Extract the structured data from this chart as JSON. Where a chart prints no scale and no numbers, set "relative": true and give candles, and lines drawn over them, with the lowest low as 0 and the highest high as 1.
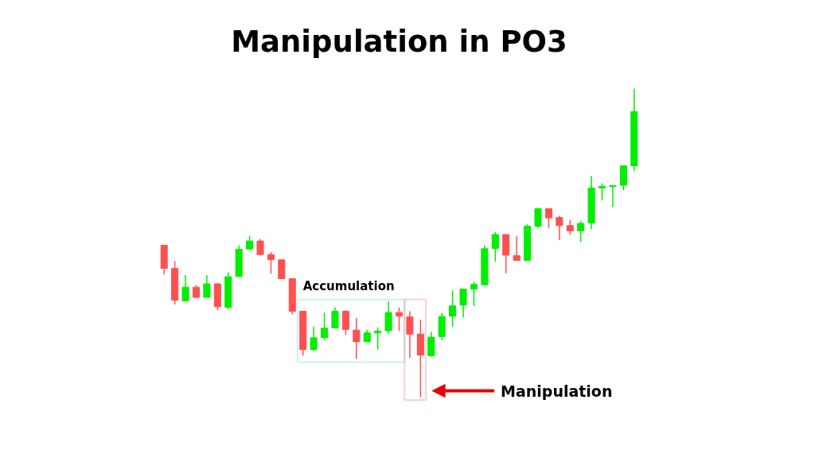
{
  "chart_data": {
    "type": "candlestick",
    "title": "Manipulation in PO3",
    "relative": true,
    "categories": [
      null,
      null,
      null,
      null,
      null,
      null,
      null,
      null,
      null,
      null,
      null,
      null,
      null,
      null,
      null,
      null,
      null,
      null,
      null,
      null,
      null,
      null,
      null,
      null,
      null,
      null,
      null,
      null,
      null,
      null,
      null,
      null,
      null,
      null,
      null,
      null,
      null,
      null,
      null,
      null,
      null,
      null,
      null,
      null,
      null
    ],
    "ohlc": [
      [
        0.492,
        0.492,
        0.398,
        0.417
      ],
      [
        0.417,
        0.441,
        0.3,
        0.314
      ],
      [
        0.312,
        0.395,
        0.309,
        0.356
      ],
      [
        0.356,
        0.363,
        0.32,
        0.323
      ],
      [
        0.323,
        0.395,
        0.323,
        0.367
      ],
      [
        0.367,
        0.37,
        0.282,
        0.293
      ],
      [
        0.291,
        0.404,
        0.284,
        0.39
      ],
      [
        0.391,
        0.492,
        0.391,
        0.479
      ],
      [
        0.48,
        0.522,
        0.477,
        0.506
      ],
      [
        0.506,
        0.513,
        0.46,
        0.462
      ],
      [
        0.462,
        0.47,
        0.4,
        0.446
      ],
      [
        0.445,
        0.445,
        0.383,
        0.384
      ],
      [
        0.384,
        0.384,
        0.267,
        0.278
      ],
      [
        0.278,
        0.28,
        0.134,
        0.154
      ],
      [
        0.154,
        0.228,
        0.149,
        0.192
      ],
      [
        0.193,
        0.273,
        0.184,
        0.223
      ],
      [
        0.224,
        0.291,
        0.224,
        0.278
      ],
      [
        0.278,
        0.281,
        0.201,
        0.219
      ],
      [
        0.217,
        0.256,
        0.123,
        0.179
      ],
      [
        0.179,
        0.218,
        0.179,
        0.208
      ],
      [
        0.208,
        0.226,
        0.154,
        0.213
      ],
      [
        0.215,
        0.311,
        0.205,
        0.274
      ],
      [
        0.274,
        0.29,
        0.214,
        0.262
      ],
      [
        0.26,
        0.278,
        0.127,
        0.204
      ],
      [
        0.204,
        0.251,
        0,
        0.136
      ],
      [
        0.134,
        0.211,
        0.131,
        0.194
      ],
      [
        0.196,
        0.273,
        0.185,
        0.261
      ],
      [
        0.262,
        0.346,
        0.228,
        0.296
      ],
      [
        0.298,
        0.351,
        0.258,
        0.35
      ],
      [
        0.35,
        0.374,
        0.295,
        0.365
      ],
      [
        0.364,
        0.492,
        0.361,
        0.481
      ],
      [
        0.482,
        0.535,
        0.439,
        0.527
      ],
      [
        0.527,
        0.527,
        0.401,
        0.46
      ],
      [
        0.459,
        0.521,
        0.443,
        0.443
      ],
      [
        0.443,
        0.56,
        0.443,
        0.554
      ],
      [
        0.554,
        0.613,
        0.549,
        0.611
      ],
      [
        0.611,
        0.611,
        0.548,
        0.581
      ],
      [
        0.582,
        0.588,
        0.509,
        0.556
      ],
      [
        0.556,
        0.574,
        0.526,
        0.539
      ],
      [
        0.539,
        0.571,
        0.503,
        0.563
      ],
      [
        0.564,
        0.717,
        0.545,
        0.678
      ],
      [
        0.678,
        0.693,
        0.637,
        0.683
      ],
      [
        0.683,
        0.687,
        0.616,
        0.686
      ],
      [
        0.687,
        0.75,
        0.671,
        0.75
      ],
      [
        0.75,
        1,
        0.734,
        0.926
      ]
    ],
    "colors": [
      "#ff5050",
      "#ff5050",
      "#00ee00",
      "#ff5050",
      "#00ee00",
      "#ff5050",
      "#00ee00",
      "#00ee00",
      "#00ee00",
      "#ff5050",
      "#ff5050",
      "#ff5050",
      "#ff5050",
      "#ff5050",
      "#00ee00",
      "#00ee00",
      "#00ee00",
      "#ff5050",
      "#ff5050",
      "#00ee00",
      "#00ee00",
      "#00ee00",
      "#ff5050",
      "#ff5050",
      "#ff5050",
      "#00ee00",
      "#00ee00",
      "#00ee00",
      "#00ee00",
      "#00ee00",
      "#00ee00",
      "#00ee00",
      "#ff5050",
      "#ff5050",
      "#00ee00",
      "#00ee00",
      "#ff5050",
      "#ff5050",
      "#ff5050",
      "#00ee00",
      "#00ee00",
      "#00ee00",
      "#00ee00",
      "#00ee00",
      "#00ee00"
    ],
    "annotations": [
      "Accumulation",
      "Manipulation"
    ]
  }
}
